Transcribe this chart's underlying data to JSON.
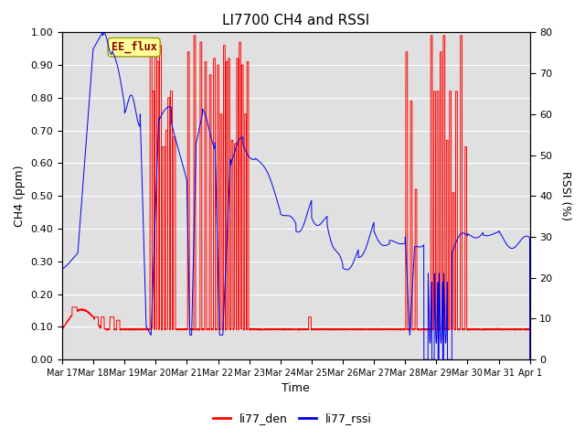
{
  "title": "LI7700 CH4 and RSSI",
  "xlabel": "Time",
  "ylabel_left": "CH4 (ppm)",
  "ylabel_right": "RSSI (%)",
  "ylim_left": [
    0.0,
    1.0
  ],
  "ylim_right": [
    0,
    80
  ],
  "yticks_left": [
    0.0,
    0.1,
    0.2,
    0.3,
    0.4,
    0.5,
    0.6,
    0.7,
    0.8,
    0.9,
    1.0
  ],
  "yticks_right": [
    0,
    10,
    20,
    30,
    40,
    50,
    60,
    70,
    80
  ],
  "color_den": "#FF0000",
  "color_rssi": "#0000EE",
  "background_color": "#E0E0E0",
  "legend_labels": [
    "li77_den",
    "li77_rssi"
  ],
  "annotation_text": "EE_flux",
  "xtick_labels": [
    "Mar 17",
    "Mar 18",
    "Mar 19",
    "Mar 20",
    "Mar 21",
    "Mar 22",
    "Mar 23",
    "Mar 24",
    "Mar 25",
    "Mar 26",
    "Mar 27",
    "Mar 28",
    "Mar 29",
    "Mar 30",
    "Mar 31",
    "Apr 1"
  ]
}
